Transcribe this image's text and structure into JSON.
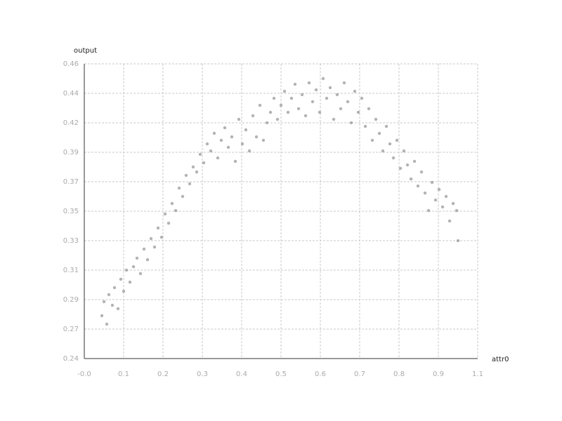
{
  "chart_data": {
    "type": "scatter",
    "x_label": "attr0",
    "y_label": "output",
    "color": "#808080",
    "grid": true,
    "xlim": [
      -0.04,
      1.055
    ],
    "ylim": [
      0.2445,
      0.4585
    ],
    "xticks": [
      {
        "value": -0.04,
        "label": "-0.0"
      },
      {
        "value": 0.0695,
        "label": "0.1"
      },
      {
        "value": 0.179,
        "label": "0.2"
      },
      {
        "value": 0.2885,
        "label": "0.3"
      },
      {
        "value": 0.398,
        "label": "0.4"
      },
      {
        "value": 0.5075,
        "label": "0.5"
      },
      {
        "value": 0.617,
        "label": "0.6"
      },
      {
        "value": 0.7265,
        "label": "0.7"
      },
      {
        "value": 0.836,
        "label": "0.8"
      },
      {
        "value": 0.9455,
        "label": "0.9"
      },
      {
        "value": 1.055,
        "label": "1.1"
      }
    ],
    "yticks": [
      {
        "value": 0.2445,
        "label": "0.24"
      },
      {
        "value": 0.2659,
        "label": "0.27"
      },
      {
        "value": 0.2873,
        "label": "0.29"
      },
      {
        "value": 0.3087,
        "label": "0.31"
      },
      {
        "value": 0.3301,
        "label": "0.33"
      },
      {
        "value": 0.3515,
        "label": "0.35"
      },
      {
        "value": 0.3729,
        "label": "0.37"
      },
      {
        "value": 0.3943,
        "label": "0.39"
      },
      {
        "value": 0.4157,
        "label": "0.42"
      },
      {
        "value": 0.4371,
        "label": "0.44"
      },
      {
        "value": 0.4585,
        "label": "0.46"
      }
    ],
    "x": [
      0.0089,
      0.0148,
      0.0226,
      0.0284,
      0.0382,
      0.0441,
      0.0539,
      0.0617,
      0.0695,
      0.0773,
      0.0871,
      0.0969,
      0.1067,
      0.1164,
      0.1262,
      0.136,
      0.1458,
      0.1555,
      0.1653,
      0.1751,
      0.1849,
      0.1946,
      0.2044,
      0.2142,
      0.224,
      0.2337,
      0.2435,
      0.2533,
      0.2631,
      0.2729,
      0.2826,
      0.2924,
      0.3022,
      0.312,
      0.3217,
      0.3315,
      0.3413,
      0.3511,
      0.3609,
      0.3706,
      0.3804,
      0.3902,
      0.4,
      0.4097,
      0.4195,
      0.4293,
      0.4391,
      0.4488,
      0.4586,
      0.4684,
      0.4782,
      0.488,
      0.4977,
      0.5075,
      0.5173,
      0.5271,
      0.5368,
      0.5466,
      0.5564,
      0.5662,
      0.576,
      0.5857,
      0.5955,
      0.6053,
      0.6151,
      0.6248,
      0.6346,
      0.6444,
      0.6542,
      0.6639,
      0.6737,
      0.6835,
      0.6933,
      0.7031,
      0.7128,
      0.7226,
      0.7324,
      0.7422,
      0.7519,
      0.7617,
      0.7715,
      0.7813,
      0.7911,
      0.8008,
      0.8106,
      0.8204,
      0.8302,
      0.8399,
      0.8497,
      0.8595,
      0.8693,
      0.8791,
      0.8888,
      0.8986,
      0.9084,
      0.9182,
      0.9279,
      0.9377,
      0.9475,
      0.9573,
      0.9671,
      0.9768,
      0.9866,
      0.9964,
      1.0003
    ],
    "y": [
      0.2756,
      0.2858,
      0.2695,
      0.2909,
      0.2832,
      0.296,
      0.2807,
      0.3021,
      0.2934,
      0.3087,
      0.3,
      0.3112,
      0.3174,
      0.3062,
      0.324,
      0.3163,
      0.3316,
      0.3255,
      0.3393,
      0.3326,
      0.3495,
      0.3428,
      0.3571,
      0.352,
      0.3683,
      0.3622,
      0.3775,
      0.3714,
      0.3836,
      0.38,
      0.3928,
      0.3867,
      0.4004,
      0.3953,
      0.4081,
      0.3902,
      0.403,
      0.4121,
      0.3979,
      0.4055,
      0.3877,
      0.4182,
      0.4004,
      0.4106,
      0.3953,
      0.4208,
      0.4055,
      0.4284,
      0.403,
      0.4157,
      0.4233,
      0.4335,
      0.4182,
      0.4284,
      0.4386,
      0.4233,
      0.4335,
      0.4437,
      0.4259,
      0.4361,
      0.4208,
      0.4447,
      0.431,
      0.4396,
      0.4233,
      0.4478,
      0.4335,
      0.4412,
      0.4182,
      0.4361,
      0.4259,
      0.4447,
      0.431,
      0.4157,
      0.4386,
      0.4233,
      0.4335,
      0.4131,
      0.4259,
      0.403,
      0.4182,
      0.408,
      0.3953,
      0.4131,
      0.4004,
      0.3902,
      0.403,
      0.3826,
      0.3953,
      0.3851,
      0.3749,
      0.3877,
      0.3698,
      0.38,
      0.3647,
      0.352,
      0.3724,
      0.3596,
      0.3673,
      0.3546,
      0.3622,
      0.3444,
      0.3571,
      0.352,
      0.3301
    ]
  }
}
